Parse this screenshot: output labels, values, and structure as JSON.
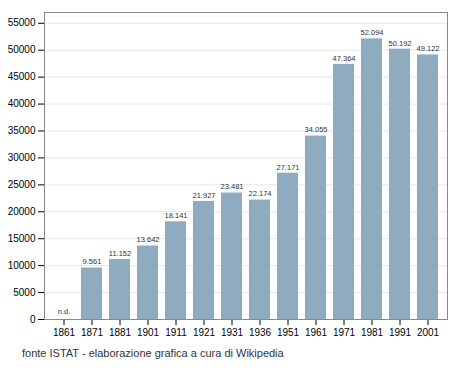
{
  "chart_data": {
    "type": "bar",
    "categories": [
      "1861",
      "1871",
      "1881",
      "1901",
      "1911",
      "1921",
      "1931",
      "1936",
      "1951",
      "1961",
      "1971",
      "1981",
      "1991",
      "2001"
    ],
    "values": [
      null,
      9561,
      11152,
      13642,
      18141,
      21927,
      23481,
      22174,
      27171,
      34055,
      47364,
      52094,
      50192,
      49122
    ],
    "value_labels": [
      "n.d.",
      "9.561",
      "11.152",
      "13.642",
      "18.141",
      "21.927",
      "23.481",
      "22.174",
      "27.171",
      "34.055",
      "47.364",
      "52.094",
      "50.192",
      "49.122"
    ],
    "data_labels": true,
    "color": "#8FABBF",
    "ylim": [
      0,
      57000
    ],
    "yticks": [
      0,
      5000,
      10000,
      15000,
      20000,
      25000,
      30000,
      35000,
      40000,
      45000,
      50000,
      55000
    ],
    "grid": true,
    "annotations": [
      "fonte ISTAT - elaborazione grafica a cura di Wikipedia"
    ]
  }
}
